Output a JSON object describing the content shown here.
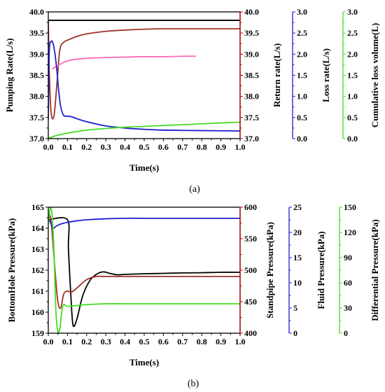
{
  "chart_data": [
    {
      "type": "line",
      "caption": "(a)",
      "xlabel": "Time(s)",
      "xlim": [
        0,
        1.0
      ],
      "xticks": [
        "0.0",
        "0.1",
        "0.2",
        "0.3",
        "0.4",
        "0.5",
        "0.6",
        "0.7",
        "0.8",
        "0.9",
        "1.0"
      ],
      "grid": false,
      "axes": [
        {
          "id": "a_ax1",
          "label": "Pumping Rate(L/s)",
          "ylim": [
            37,
            40
          ],
          "ticks": [
            "37.0",
            "37.5",
            "38.0",
            "38.5",
            "39.0",
            "39.5",
            "40.0"
          ],
          "color": "#000000"
        },
        {
          "id": "a_ax2",
          "label": "Return rate(L/s)",
          "ylim": [
            37,
            40
          ],
          "ticks": [
            "37.0",
            "37.5",
            "38.0",
            "38.5",
            "39.0",
            "39.5",
            "40.0"
          ],
          "color": "#c00000"
        },
        {
          "id": "a_ax3",
          "label": "Loss rate(L/s)",
          "ylim": [
            0,
            3
          ],
          "ticks": [
            "0.0",
            "0.5",
            "1.0",
            "1.5",
            "2.0",
            "2.5",
            "3.0"
          ],
          "color": "#1f1fd0"
        },
        {
          "id": "a_ax4",
          "label": "Cumulative loss volume(L)",
          "ylim": [
            0,
            3
          ],
          "ticks": [
            "0.0",
            "0.5",
            "1.0",
            "1.5",
            "2.0",
            "2.5",
            "3.0"
          ],
          "color": "#44dd22"
        }
      ],
      "series": [
        {
          "axis": 0,
          "color": "#000000",
          "x": [
            0,
            1.0
          ],
          "y": [
            39.8,
            39.8
          ]
        },
        {
          "axis": 1,
          "color": "#a0302a",
          "x": [
            0,
            0.005,
            0.015,
            0.03,
            0.045,
            0.06,
            0.08,
            0.1,
            0.15,
            0.2,
            0.3,
            0.4,
            0.5,
            0.6,
            0.8,
            1.0
          ],
          "y": [
            39.8,
            38.6,
            37.6,
            37.55,
            38.3,
            39.1,
            39.28,
            39.33,
            39.42,
            39.48,
            39.54,
            39.57,
            39.59,
            39.6,
            39.6,
            39.6
          ]
        },
        {
          "axis": 1,
          "color": "#ff69b4",
          "x": [
            0.02,
            0.1,
            0.2,
            0.3,
            0.4,
            0.5,
            0.6,
            0.7,
            0.77
          ],
          "y": [
            38.65,
            38.84,
            38.9,
            38.92,
            38.93,
            38.94,
            38.94,
            38.95,
            38.95
          ]
        },
        {
          "axis": 2,
          "color": "#1f1fd0",
          "x": [
            0,
            0.005,
            0.015,
            0.025,
            0.035,
            0.045,
            0.055,
            0.065,
            0.08,
            0.1,
            0.12,
            0.15,
            0.2,
            0.3,
            0.4,
            0.5,
            0.6,
            0.8,
            1.0
          ],
          "y": [
            0.45,
            2.05,
            2.3,
            2.25,
            2.0,
            1.6,
            1.1,
            0.75,
            0.55,
            0.53,
            0.52,
            0.47,
            0.4,
            0.3,
            0.25,
            0.22,
            0.2,
            0.19,
            0.18
          ]
        },
        {
          "axis": 3,
          "color": "#44dd22",
          "x": [
            0,
            0.02,
            0.05,
            0.1,
            0.2,
            0.3,
            0.4,
            0.5,
            0.6,
            0.7,
            0.8,
            0.9,
            1.0
          ],
          "y": [
            0.0,
            0.04,
            0.08,
            0.13,
            0.2,
            0.24,
            0.27,
            0.29,
            0.31,
            0.33,
            0.35,
            0.37,
            0.39
          ]
        }
      ]
    },
    {
      "type": "line",
      "caption": "(b)",
      "xlabel": "Time(s)",
      "xlim": [
        0,
        1.0
      ],
      "xticks": [
        "0.0",
        "0.1",
        "0.2",
        "0.3",
        "0.4",
        "0.5",
        "0.6",
        "0.7",
        "0.8",
        "0.9",
        "1.0"
      ],
      "grid": false,
      "axes": [
        {
          "id": "b_ax1",
          "label": "BottomHole Pressure(kPa)",
          "ylim": [
            159,
            165
          ],
          "ticks": [
            "159",
            "160",
            "161",
            "162",
            "163",
            "164",
            "165"
          ],
          "color": "#000000"
        },
        {
          "id": "b_ax2",
          "label": "Standpipe Pressure(kPa)",
          "ylim": [
            400,
            600
          ],
          "ticks": [
            "400",
            "450",
            "500",
            "550",
            "600"
          ],
          "color": "#c00000"
        },
        {
          "id": "b_ax3",
          "label": "Fluid Pressure(kPa)",
          "ylim": [
            0,
            25
          ],
          "ticks": [
            "0",
            "5",
            "10",
            "15",
            "20",
            "25"
          ],
          "color": "#1f1fd0"
        },
        {
          "id": "b_ax4",
          "label": "Differential Pressure(kPa)",
          "ylim": [
            0,
            150
          ],
          "ticks": [
            "0",
            "30",
            "60",
            "90",
            "120",
            "150"
          ],
          "color": "#44dd22"
        }
      ],
      "series": [
        {
          "axis": 0,
          "color": "#000000",
          "x": [
            0,
            0.1,
            0.105,
            0.12,
            0.13,
            0.15,
            0.18,
            0.22,
            0.26,
            0.29,
            0.32,
            0.36,
            0.4,
            0.5,
            0.6,
            0.7,
            0.8,
            0.9,
            1.0
          ],
          "y": [
            164.4,
            164.4,
            163.0,
            160.4,
            159.35,
            159.7,
            160.8,
            161.55,
            161.85,
            161.92,
            161.85,
            161.78,
            161.8,
            161.83,
            161.85,
            161.87,
            161.88,
            161.9,
            161.9
          ]
        },
        {
          "axis": 1,
          "color": "#a0302a",
          "x": [
            0,
            0.01,
            0.02,
            0.035,
            0.05,
            0.065,
            0.08,
            0.1,
            0.12,
            0.15,
            0.2,
            0.25,
            0.3,
            0.4,
            0.5,
            0.6,
            0.8,
            1.0
          ],
          "y": [
            590,
            585,
            560,
            500,
            450,
            440,
            462,
            467,
            465,
            472,
            485,
            490,
            490,
            490,
            490,
            490,
            490,
            490
          ]
        },
        {
          "axis": 2,
          "color": "#1f1fd0",
          "x": [
            0,
            0.008,
            0.015,
            0.025,
            0.04,
            0.06,
            0.1,
            0.15,
            0.2,
            0.3,
            0.4,
            0.5,
            0.6,
            0.8,
            1.0
          ],
          "y": [
            22.5,
            22.3,
            21.6,
            20.8,
            21.2,
            21.6,
            22.0,
            22.3,
            22.5,
            22.7,
            22.8,
            22.8,
            22.8,
            22.8,
            22.8
          ]
        },
        {
          "axis": 3,
          "color": "#44dd22",
          "x": [
            0,
            0.01,
            0.02,
            0.03,
            0.04,
            0.05,
            0.06,
            0.07,
            0.08,
            0.1,
            0.15,
            0.2,
            0.3,
            0.4,
            0.5,
            0.6,
            0.8,
            1.0
          ],
          "y": [
            130,
            149,
            140,
            95,
            25,
            2,
            5,
            25,
            34,
            32,
            33,
            34,
            35,
            35,
            35,
            35,
            35,
            35
          ]
        }
      ]
    }
  ]
}
